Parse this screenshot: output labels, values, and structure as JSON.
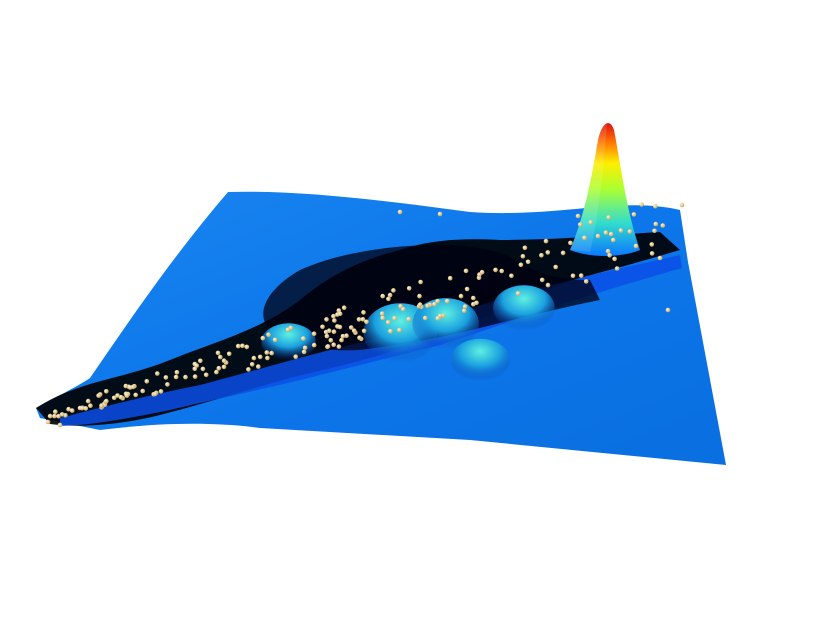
{
  "chart_data": {
    "type": "surface",
    "title": "",
    "xlabel": "",
    "ylabel": "",
    "zlabel": "",
    "axes_visible": false,
    "grid": false,
    "legend": "none",
    "colormap": [
      "#000000",
      "#0033ff",
      "#0a78ff",
      "#33ddcc",
      "#aaff33",
      "#ffee00",
      "#ff7a00",
      "#e01010"
    ],
    "base_color": "#0a78ff",
    "point_color": "#f4e2b0",
    "surface_peaks": [
      {
        "x": 0.86,
        "y": 0.58,
        "height": 1.0
      },
      {
        "x": 0.48,
        "y": 0.4,
        "height": 0.28
      },
      {
        "x": 0.55,
        "y": 0.46,
        "height": 0.22
      },
      {
        "x": 0.68,
        "y": 0.55,
        "height": 0.18
      },
      {
        "x": 0.3,
        "y": 0.36,
        "height": 0.12
      },
      {
        "x": 0.62,
        "y": 0.33,
        "height": 0.16
      }
    ],
    "point_count": 200
  }
}
